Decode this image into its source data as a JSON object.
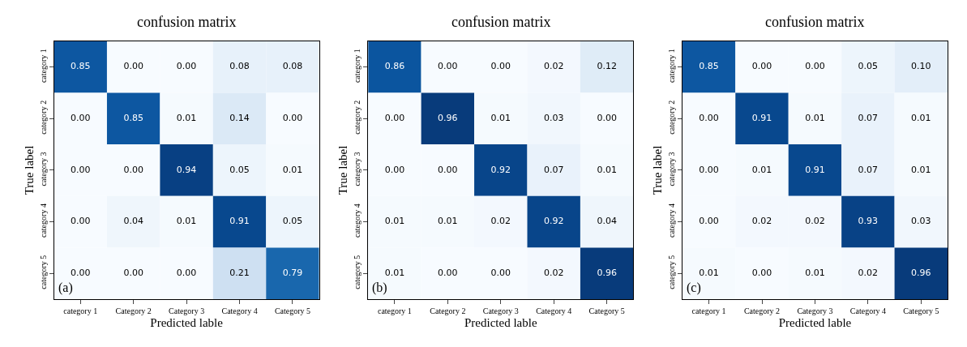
{
  "chart_data": [
    {
      "type": "heatmap",
      "title": "confusion matrix",
      "xlabel": "Predicted lable",
      "ylabel": "True label",
      "annotations": [
        "(a)"
      ],
      "categories": [
        "category 1",
        "Category 2",
        "Category 3",
        "Category 4",
        "Category 5"
      ],
      "y_categories": [
        "category 1",
        "category 2",
        "category 3",
        "category 4",
        "category 5"
      ],
      "cells": [
        [
          0.85,
          0.0,
          0.0,
          0.08,
          0.08
        ],
        [
          0.0,
          0.85,
          0.01,
          0.14,
          0.0
        ],
        [
          0.0,
          0.0,
          0.94,
          0.05,
          0.01
        ],
        [
          0.0,
          0.04,
          0.01,
          0.91,
          0.05
        ],
        [
          0.0,
          0.0,
          0.0,
          0.21,
          0.79
        ]
      ],
      "cell_labels": [
        [
          "0.85",
          "0.00",
          "0.00",
          "0.08",
          "0.08"
        ],
        [
          "0.00",
          "0.85",
          "0.01",
          "0.14",
          "0.00"
        ],
        [
          "0.00",
          "0.00",
          "0.94",
          "0.05",
          "0.01"
        ],
        [
          "0.00",
          "0.04",
          "0.01",
          "0.91",
          "0.05"
        ],
        [
          "0.00",
          "0.00",
          "0.00",
          "0.21",
          "0.79"
        ]
      ]
    },
    {
      "type": "heatmap",
      "title": "confusion matrix",
      "xlabel": "Predicted lable",
      "ylabel": "True label",
      "annotations": [
        "(b)"
      ],
      "categories": [
        "category 1",
        "Category 2",
        "Category 3",
        "Category 4",
        "Category 5"
      ],
      "y_categories": [
        "category 1",
        "category 2",
        "category 3",
        "category 4",
        "category 5"
      ],
      "cells": [
        [
          0.86,
          0.0,
          0.0,
          0.02,
          0.12
        ],
        [
          0.0,
          0.96,
          0.01,
          0.03,
          0.0
        ],
        [
          0.0,
          0.0,
          0.92,
          0.07,
          0.01
        ],
        [
          0.01,
          0.01,
          0.02,
          0.92,
          0.04
        ],
        [
          0.01,
          0.0,
          0.0,
          0.02,
          0.96
        ]
      ],
      "cell_labels": [
        [
          "0.86",
          "0.00",
          "0.00",
          "0.02",
          "0.12"
        ],
        [
          "0.00",
          "0.96",
          "0.01",
          "0.03",
          "0.00"
        ],
        [
          "0.00",
          "0.00",
          "0.92",
          "0.07",
          "0.01"
        ],
        [
          "0.01",
          "0.01",
          "0.02",
          "0.92",
          "0.04"
        ],
        [
          "0.01",
          "0.00",
          "0.00",
          "0.02",
          "0.96"
        ]
      ]
    },
    {
      "type": "heatmap",
      "title": "confusion matrix",
      "xlabel": "Predicted lable",
      "ylabel": "True label",
      "annotations": [
        "(c)"
      ],
      "categories": [
        "category 1",
        "Category 2",
        "Category 3",
        "Category 4",
        "Category 5"
      ],
      "y_categories": [
        "category 1",
        "category 2",
        "category 3",
        "category 4",
        "category 5"
      ],
      "cells": [
        [
          0.85,
          0.0,
          0.0,
          0.05,
          0.1
        ],
        [
          0.0,
          0.91,
          0.01,
          0.07,
          0.01
        ],
        [
          0.0,
          0.01,
          0.91,
          0.07,
          0.01
        ],
        [
          0.0,
          0.02,
          0.02,
          0.93,
          0.03
        ],
        [
          0.01,
          0.0,
          0.01,
          0.02,
          0.96
        ]
      ],
      "cell_labels": [
        [
          "0.85",
          "0.00",
          "0.00",
          "0.05",
          "0.10"
        ],
        [
          "0.00",
          "0.91",
          "0.01",
          "0.07",
          "0.01"
        ],
        [
          "0.00",
          "0.01",
          "0.91",
          "0.07",
          "0.01"
        ],
        [
          "0.00",
          "0.02",
          "0.02",
          "0.93",
          "0.03"
        ],
        [
          "0.01",
          "0.00",
          "0.01",
          "0.02",
          "0.96"
        ]
      ]
    }
  ]
}
